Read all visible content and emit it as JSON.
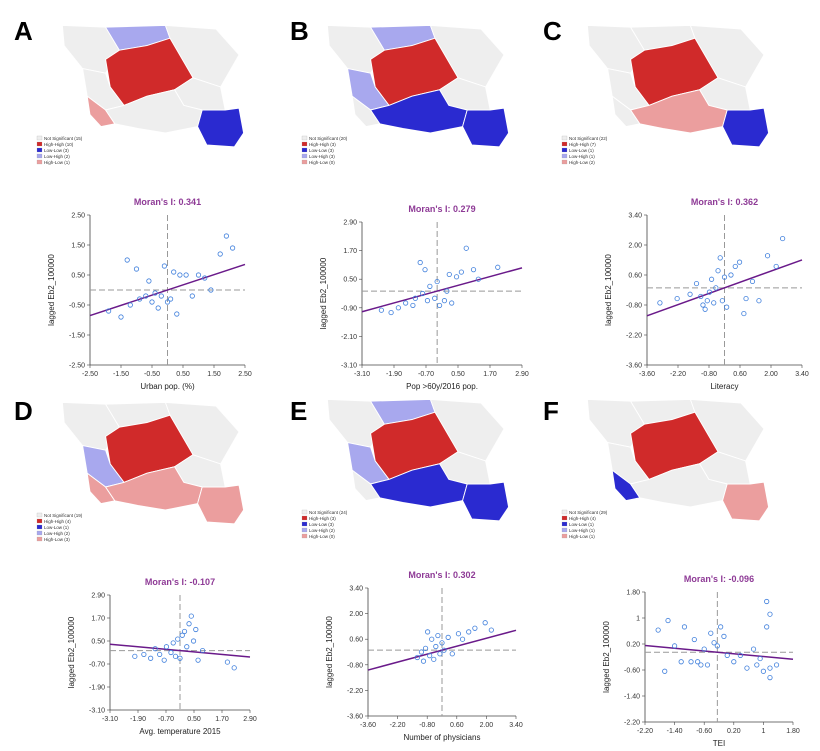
{
  "panels": [
    {
      "label": "A",
      "legend": [
        "Not Significant (15)",
        "High-High (10)",
        "Low-Low (3)",
        "Low-High (2)",
        "High-Low (1)"
      ],
      "regions": {
        "nw": "#eeeeee",
        "ne": "#eeeeee",
        "north": "#a8a8ee",
        "center": "#d02a2a",
        "west": "#eeeeee",
        "south": "#eeeeee",
        "sw": "#eb9e9e",
        "se": "#2a2ad0",
        "east": "#eeeeee"
      }
    },
    {
      "label": "B",
      "legend": [
        "Not Significant (20)",
        "High-High (3)",
        "Low-Low (3)",
        "Low-High (3)",
        "High-Low (0)"
      ],
      "regions": {
        "nw": "#eeeeee",
        "ne": "#eeeeee",
        "north": "#a8a8ee",
        "center": "#d02a2a",
        "west": "#a8a8ee",
        "south": "#2a2ad0",
        "sw": "#eeeeee",
        "se": "#2a2ad0",
        "east": "#eeeeee"
      }
    },
    {
      "label": "C",
      "legend": [
        "Not Significant (22)",
        "High-High (7)",
        "Low-Low (1)",
        "Low-High (1)",
        "High-Low (2)"
      ],
      "regions": {
        "nw": "#eeeeee",
        "ne": "#eeeeee",
        "north": "#eeeeee",
        "center": "#d02a2a",
        "west": "#eeeeee",
        "south": "#eb9e9e",
        "sw": "#eeeeee",
        "se": "#2a2ad0",
        "east": "#eeeeee"
      }
    },
    {
      "label": "D",
      "legend": [
        "Not Significant (19)",
        "High-High (4)",
        "Low-Low (1)",
        "Low-High (2)",
        "High-Low (3)"
      ],
      "regions": {
        "nw": "#eeeeee",
        "ne": "#eeeeee",
        "north": "#eeeeee",
        "center": "#d02a2a",
        "west": "#a8a8ee",
        "south": "#eb9e9e",
        "sw": "#eb9e9e",
        "se": "#eb9e9e",
        "east": "#eeeeee"
      }
    },
    {
      "label": "E",
      "legend": [
        "Not Significant (24)",
        "High-High (3)",
        "Low-Low (3)",
        "Low-High (2)",
        "High-Low (0)"
      ],
      "regions": {
        "nw": "#eeeeee",
        "ne": "#eeeeee",
        "north": "#a8a8ee",
        "center": "#d02a2a",
        "west": "#a8a8ee",
        "south": "#2a2ad0",
        "sw": "#eeeeee",
        "se": "#2a2ad0",
        "east": "#eeeeee"
      }
    },
    {
      "label": "F",
      "legend": [
        "Not Significant (29)",
        "High-High (4)",
        "Low-Low (1)",
        "Low-High (1)",
        "High-Low (1)"
      ],
      "regions": {
        "nw": "#eeeeee",
        "ne": "#eeeeee",
        "north": "#eeeeee",
        "center": "#d02a2a",
        "west": "#eeeeee",
        "south": "#eeeeee",
        "sw": "#2a2ad0",
        "se": "#eb9e9e",
        "east": "#eeeeee"
      }
    }
  ],
  "chart_data": [
    {
      "type": "scatter",
      "title": "Moran's I: 0.341",
      "xlabel": "Urban pop. (%)",
      "ylabel": "lagged Eb2_100000",
      "xlim": [
        -2.5,
        2.5
      ],
      "ylim": [
        -2.5,
        2.5
      ],
      "xticks": [
        "-2.50",
        "-1.50",
        "-0.50",
        "0.50",
        "1.50",
        "2.50"
      ],
      "yticks": [
        "-2.50",
        "-1.50",
        "-0.50",
        "0.50",
        "1.50",
        "2.50"
      ],
      "mean_x": 0.0,
      "mean_y": 0.0,
      "slope": 0.341,
      "points": [
        [
          -1.9,
          -0.7
        ],
        [
          -1.5,
          -0.9
        ],
        [
          -1.3,
          1.0
        ],
        [
          -1.2,
          -0.5
        ],
        [
          -1.0,
          0.7
        ],
        [
          -0.9,
          -0.3
        ],
        [
          -0.7,
          -0.2
        ],
        [
          -0.6,
          0.3
        ],
        [
          -0.5,
          -0.4
        ],
        [
          -0.4,
          -0.1
        ],
        [
          -0.3,
          -0.6
        ],
        [
          -0.2,
          -0.2
        ],
        [
          -0.1,
          0.8
        ],
        [
          0.0,
          -0.4
        ],
        [
          0.1,
          -0.3
        ],
        [
          0.2,
          0.6
        ],
        [
          0.3,
          -0.8
        ],
        [
          0.4,
          0.5
        ],
        [
          0.6,
          0.5
        ],
        [
          0.8,
          -0.2
        ],
        [
          1.0,
          0.5
        ],
        [
          1.2,
          0.4
        ],
        [
          1.4,
          0.0
        ],
        [
          1.7,
          1.2
        ],
        [
          1.9,
          1.8
        ],
        [
          2.1,
          1.4
        ]
      ]
    },
    {
      "type": "scatter",
      "title": "Moran's I: 0.279",
      "xlabel": "Pop >60y/2016 pop.",
      "ylabel": "lagged Eb2_100000",
      "xlim": [
        -3.1,
        3.5
      ],
      "ylim": [
        -3.1,
        2.9
      ],
      "xticks": [
        "-3.10",
        "-1.90",
        "-0.70",
        "0.50",
        "1.70",
        "2.90"
      ],
      "yticks": [
        "-3.10",
        "-2.10",
        "-0.90",
        "0.50",
        "1.70",
        "2.90"
      ],
      "mean_x": 0.0,
      "mean_y": 0.0,
      "slope": 0.279,
      "points": [
        [
          -2.3,
          -0.8
        ],
        [
          -1.9,
          -0.9
        ],
        [
          -1.6,
          -0.7
        ],
        [
          -1.3,
          -0.5
        ],
        [
          -1.0,
          -0.6
        ],
        [
          -0.9,
          -0.3
        ],
        [
          -0.7,
          1.2
        ],
        [
          -0.6,
          -0.1
        ],
        [
          -0.5,
          0.9
        ],
        [
          -0.4,
          -0.4
        ],
        [
          -0.3,
          0.2
        ],
        [
          -0.1,
          -0.3
        ],
        [
          0.0,
          0.4
        ],
        [
          0.1,
          -0.6
        ],
        [
          0.3,
          -0.4
        ],
        [
          0.4,
          0.0
        ],
        [
          0.5,
          0.7
        ],
        [
          0.6,
          -0.5
        ],
        [
          0.8,
          0.6
        ],
        [
          1.0,
          0.8
        ],
        [
          1.2,
          1.8
        ],
        [
          1.5,
          0.9
        ],
        [
          1.7,
          0.5
        ],
        [
          2.5,
          1.0
        ]
      ]
    },
    {
      "type": "scatter",
      "title": "Moran's I: 0.362",
      "xlabel": "Literacy",
      "ylabel": "lagged Eb2_100000",
      "xlim": [
        -3.6,
        3.6
      ],
      "ylim": [
        -3.6,
        3.4
      ],
      "xticks": [
        "-3.60",
        "-2.20",
        "-0.80",
        "0.60",
        "2.00",
        "3.40"
      ],
      "yticks": [
        "-3.60",
        "-2.20",
        "-0.80",
        "0.60",
        "2.00",
        "3.40"
      ],
      "mean_x": 0.0,
      "mean_y": 0.0,
      "slope": 0.362,
      "points": [
        [
          -3.0,
          -0.7
        ],
        [
          -2.2,
          -0.5
        ],
        [
          -1.6,
          -0.3
        ],
        [
          -1.3,
          0.2
        ],
        [
          -1.1,
          -0.4
        ],
        [
          -1.0,
          -0.8
        ],
        [
          -0.9,
          -1.0
        ],
        [
          -0.8,
          -0.6
        ],
        [
          -0.7,
          -0.2
        ],
        [
          -0.6,
          0.4
        ],
        [
          -0.5,
          -0.7
        ],
        [
          -0.4,
          0.0
        ],
        [
          -0.3,
          0.8
        ],
        [
          -0.2,
          1.4
        ],
        [
          -0.1,
          -0.6
        ],
        [
          0.0,
          0.5
        ],
        [
          0.1,
          -0.9
        ],
        [
          0.3,
          0.6
        ],
        [
          0.5,
          1.0
        ],
        [
          0.7,
          1.2
        ],
        [
          0.9,
          -1.2
        ],
        [
          1.0,
          -0.5
        ],
        [
          1.3,
          0.3
        ],
        [
          1.6,
          -0.6
        ],
        [
          2.0,
          1.5
        ],
        [
          2.4,
          1.0
        ],
        [
          2.7,
          2.3
        ]
      ]
    },
    {
      "type": "scatter",
      "title": "Moran's I: -0.107",
      "xlabel": "Avg. temperature 2015",
      "ylabel": "lagged Eb2_100000",
      "xlim": [
        -3.1,
        3.1
      ],
      "ylim": [
        -3.1,
        2.9
      ],
      "xticks": [
        "-3.10",
        "-1.90",
        "-0.70",
        "0.50",
        "1.70",
        "2.90"
      ],
      "yticks": [
        "-3.10",
        "-1.90",
        "-0.70",
        "0.50",
        "1.70",
        "2.90"
      ],
      "mean_x": 0.0,
      "mean_y": 0.0,
      "slope": -0.107,
      "points": [
        [
          -2.0,
          -0.3
        ],
        [
          -1.6,
          -0.2
        ],
        [
          -1.3,
          -0.4
        ],
        [
          -1.1,
          0.1
        ],
        [
          -0.9,
          -0.2
        ],
        [
          -0.7,
          -0.5
        ],
        [
          -0.6,
          0.2
        ],
        [
          -0.4,
          -0.1
        ],
        [
          -0.3,
          0.4
        ],
        [
          -0.2,
          -0.3
        ],
        [
          -0.1,
          0.6
        ],
        [
          0.0,
          -0.4
        ],
        [
          0.1,
          0.8
        ],
        [
          0.2,
          1.0
        ],
        [
          0.3,
          0.2
        ],
        [
          0.4,
          1.4
        ],
        [
          0.5,
          1.8
        ],
        [
          0.6,
          0.5
        ],
        [
          0.7,
          1.1
        ],
        [
          0.8,
          -0.5
        ],
        [
          1.0,
          0.0
        ],
        [
          2.1,
          -0.6
        ],
        [
          2.4,
          -0.9
        ]
      ]
    },
    {
      "type": "scatter",
      "title": "Moran's I: 0.302",
      "xlabel": "Number of physicians",
      "ylabel": "lagged Eb2_100000",
      "xlim": [
        -3.6,
        3.6
      ],
      "ylim": [
        -3.6,
        3.4
      ],
      "xticks": [
        "-3.60",
        "-2.20",
        "-0.80",
        "0.60",
        "2.00",
        "3.40"
      ],
      "yticks": [
        "-3.60",
        "-2.20",
        "-0.80",
        "0.60",
        "2.00",
        "3.40"
      ],
      "mean_x": 0.0,
      "mean_y": 0.0,
      "slope": 0.302,
      "points": [
        [
          -1.2,
          -0.4
        ],
        [
          -1.0,
          -0.1
        ],
        [
          -0.9,
          -0.6
        ],
        [
          -0.8,
          0.1
        ],
        [
          -0.7,
          1.0
        ],
        [
          -0.6,
          -0.3
        ],
        [
          -0.5,
          0.6
        ],
        [
          -0.4,
          -0.5
        ],
        [
          -0.3,
          0.2
        ],
        [
          -0.2,
          0.8
        ],
        [
          -0.1,
          -0.2
        ],
        [
          0.0,
          0.4
        ],
        [
          0.1,
          0.0
        ],
        [
          0.3,
          0.7
        ],
        [
          0.5,
          -0.2
        ],
        [
          0.8,
          0.9
        ],
        [
          1.0,
          0.6
        ],
        [
          1.3,
          1.0
        ],
        [
          1.6,
          1.2
        ],
        [
          2.1,
          1.5
        ],
        [
          2.4,
          1.1
        ]
      ]
    },
    {
      "type": "scatter",
      "title": "Moran's I: -0.096",
      "xlabel": "TEI",
      "ylabel": "lagged Eb2_100000",
      "xlim": [
        -2.2,
        2.3
      ],
      "ylim": [
        -2.2,
        1.9
      ],
      "xticks": [
        "-2.20",
        "-1.40",
        "-0.60",
        "0.20",
        "1",
        "1.80"
      ],
      "yticks": [
        "-2.20",
        "-1.40",
        "-0.60",
        "0.20",
        "1",
        "1.80"
      ],
      "mean_x": 0.0,
      "mean_y": 0.0,
      "slope": -0.096,
      "points": [
        [
          -1.8,
          0.7
        ],
        [
          -1.6,
          -0.6
        ],
        [
          -1.5,
          1.0
        ],
        [
          -1.3,
          0.2
        ],
        [
          -1.1,
          -0.3
        ],
        [
          -1.0,
          0.8
        ],
        [
          -0.8,
          -0.3
        ],
        [
          -0.7,
          0.4
        ],
        [
          -0.6,
          -0.3
        ],
        [
          -0.5,
          -0.4
        ],
        [
          -0.4,
          0.1
        ],
        [
          -0.3,
          -0.4
        ],
        [
          -0.2,
          0.6
        ],
        [
          -0.1,
          0.3
        ],
        [
          0.0,
          0.2
        ],
        [
          0.1,
          0.8
        ],
        [
          0.2,
          0.5
        ],
        [
          0.3,
          -0.1
        ],
        [
          0.5,
          -0.3
        ],
        [
          0.7,
          -0.1
        ],
        [
          0.9,
          -0.5
        ],
        [
          1.1,
          0.1
        ],
        [
          1.2,
          -0.4
        ],
        [
          1.3,
          -0.2
        ],
        [
          1.4,
          -0.6
        ],
        [
          1.5,
          1.6
        ],
        [
          1.5,
          0.8
        ],
        [
          1.6,
          -0.5
        ],
        [
          1.6,
          -0.8
        ],
        [
          1.6,
          1.2
        ],
        [
          1.8,
          -0.4
        ]
      ]
    }
  ]
}
